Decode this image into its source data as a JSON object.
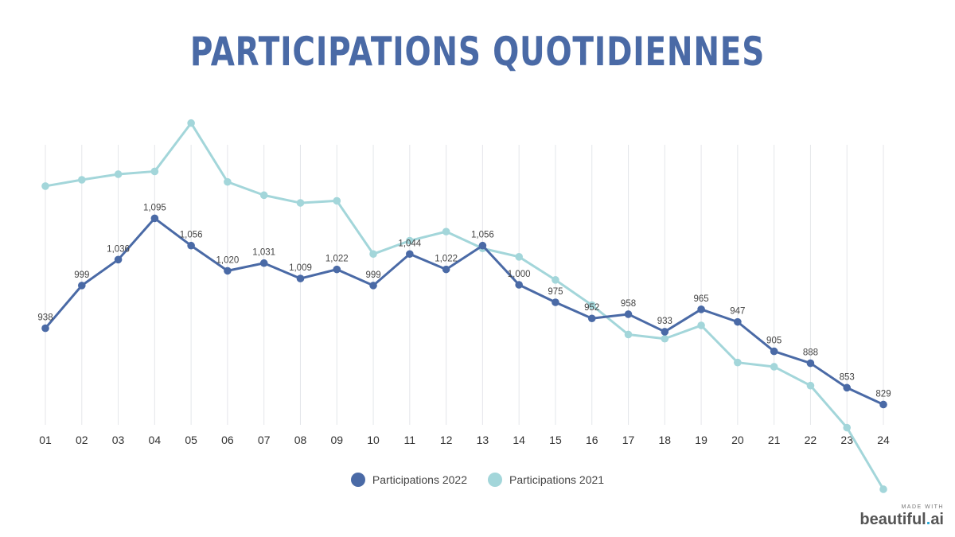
{
  "chart_data": {
    "type": "line",
    "title": "PARTICIPATIONS QUOTIDIENNES",
    "categories": [
      "01",
      "02",
      "03",
      "04",
      "05",
      "06",
      "07",
      "08",
      "09",
      "10",
      "11",
      "12",
      "13",
      "14",
      "15",
      "16",
      "17",
      "18",
      "19",
      "20",
      "21",
      "22",
      "23",
      "24"
    ],
    "ylim": [
      800,
      1200
    ],
    "grid": "vertical",
    "legend_position": "bottom-center",
    "series": [
      {
        "name": "Participations 2022",
        "color": "#4a6aa6",
        "labeled": true,
        "values": [
          938,
          999,
          1036,
          1095,
          1056,
          1020,
          1031,
          1009,
          1022,
          999,
          1044,
          1022,
          1056,
          1000,
          975,
          952,
          958,
          933,
          965,
          947,
          905,
          888,
          853,
          829
        ],
        "labels": [
          "938",
          "999",
          "1,036",
          "1,095",
          "1,056",
          "1,020",
          "1,031",
          "1,009",
          "1,022",
          "999",
          "1,044",
          "1,022",
          "1,056",
          "1,000",
          "975",
          "952",
          "958",
          "933",
          "965",
          "947",
          "905",
          "888",
          "853",
          "829"
        ]
      },
      {
        "name": "Participations 2021",
        "color": "#a3d6da",
        "labeled": false,
        "values": [
          1141,
          1150,
          1158,
          1162,
          1231,
          1147,
          1128,
          1117,
          1120,
          1044,
          1063,
          1076,
          1052,
          1040,
          1007,
          971,
          929,
          923,
          942,
          889,
          883,
          856,
          796,
          708
        ]
      }
    ]
  },
  "branding": {
    "small": "MADE WITH",
    "name_main": "beautiful",
    "name_dot": ".",
    "name_end": "ai"
  }
}
